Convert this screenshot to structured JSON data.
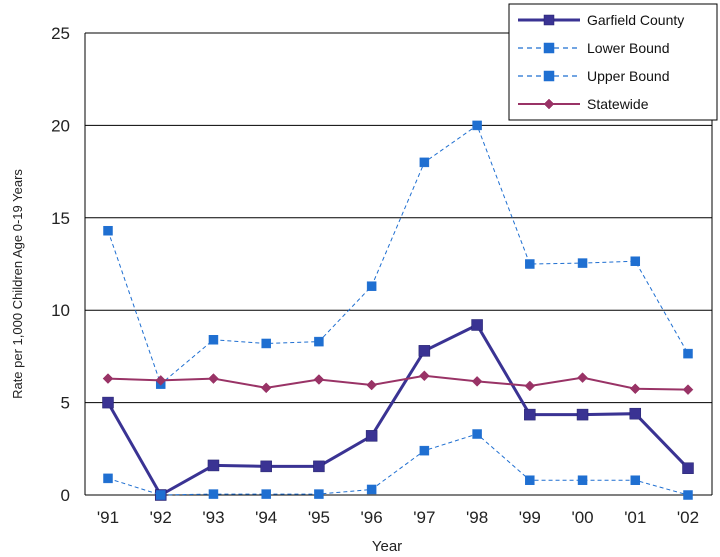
{
  "chart_data": {
    "type": "line",
    "title": "",
    "xlabel": "Year",
    "ylabel": "Rate per 1,000 Children Age 0-19 Years",
    "categories": [
      "'91",
      "'92",
      "'93",
      "'94",
      "'95",
      "'96",
      "'97",
      "'98",
      "'99",
      "'00",
      "'01",
      "'02"
    ],
    "ylim": [
      0,
      25
    ],
    "yticks": [
      "0",
      "5",
      "10",
      "15",
      "20",
      "25"
    ],
    "grid": "horizontal",
    "legend_position": "top-right",
    "series": [
      {
        "name": "Garfield County",
        "color": "#3a3393",
        "style": "solid",
        "marker": "square",
        "values": [
          5.0,
          0.0,
          1.6,
          1.55,
          1.55,
          3.2,
          7.8,
          9.2,
          4.35,
          4.35,
          4.4,
          1.45
        ]
      },
      {
        "name": "Lower Bound",
        "color": "#1f6fd1",
        "style": "dashed",
        "marker": "square",
        "values": [
          0.9,
          0.0,
          0.05,
          0.05,
          0.05,
          0.3,
          2.4,
          3.3,
          0.8,
          0.8,
          0.8,
          0.0
        ]
      },
      {
        "name": "Upper Bound",
        "color": "#1f6fd1",
        "style": "dashed",
        "marker": "square",
        "values": [
          14.3,
          6.0,
          8.4,
          8.2,
          8.3,
          11.3,
          18.0,
          20.0,
          12.5,
          12.55,
          12.65,
          7.65
        ]
      },
      {
        "name": "Statewide",
        "color": "#993366",
        "style": "solid",
        "marker": "diamond",
        "values": [
          6.3,
          6.2,
          6.3,
          5.8,
          6.25,
          5.95,
          6.45,
          6.15,
          5.9,
          6.35,
          5.75,
          5.7
        ]
      }
    ]
  }
}
